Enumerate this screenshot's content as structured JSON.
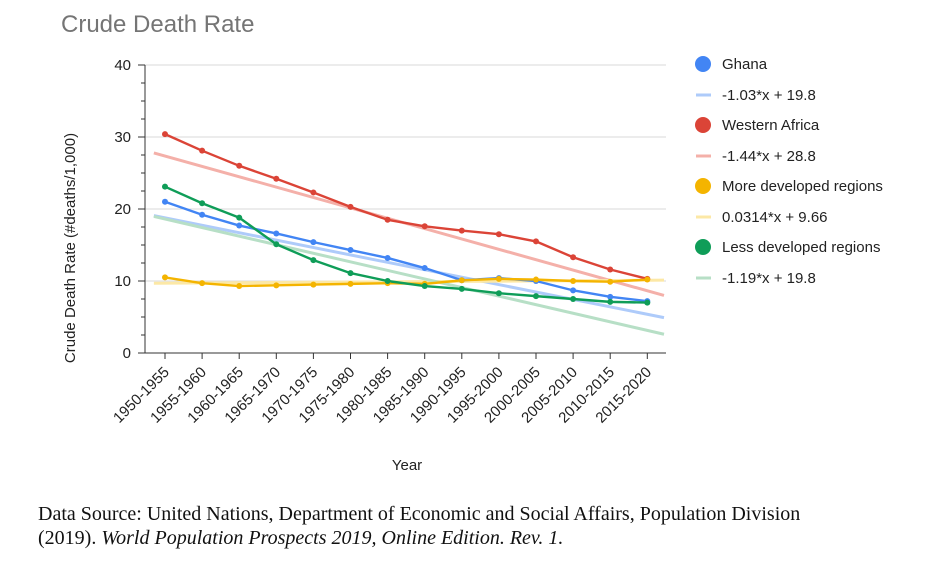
{
  "chart_data": {
    "type": "line",
    "title": "Crude Death Rate",
    "xlabel": "Year",
    "ylabel": "Crude Death Rate (#deaths/1,000)",
    "ylim": [
      0,
      40
    ],
    "yticks": [
      "0",
      "10",
      "20",
      "30",
      "40"
    ],
    "grid": true,
    "legend_position": "right",
    "categories": [
      "1950-1955",
      "1955-1960",
      "1960-1965",
      "1965-1970",
      "1970-1975",
      "1975-1980",
      "1980-1985",
      "1985-1990",
      "1990-1995",
      "1995-2000",
      "2000-2005",
      "2005-2010",
      "2010-2015",
      "2015-2020"
    ],
    "series": [
      {
        "name": "Ghana",
        "color": "#4285f4",
        "values": [
          21.0,
          19.2,
          17.7,
          16.6,
          15.4,
          14.3,
          13.2,
          11.8,
          10.1,
          10.4,
          10.0,
          8.7,
          7.8,
          7.2
        ],
        "trend_label": "-1.03*x + 19.8",
        "trend": {
          "slope": -1.03,
          "intercept": 19.8
        },
        "trend_color": "#aecbfa"
      },
      {
        "name": "Western Africa",
        "color": "#db4437",
        "values": [
          30.4,
          28.1,
          26.0,
          24.2,
          22.3,
          20.3,
          18.5,
          17.6,
          17.0,
          16.5,
          15.5,
          13.3,
          11.6,
          10.3
        ],
        "trend_label": "-1.44*x + 28.8",
        "trend": {
          "slope": -1.44,
          "intercept": 28.8
        },
        "trend_color": "#f4b0a9"
      },
      {
        "name": "More developed regions",
        "color": "#f4b400",
        "values": [
          10.5,
          9.7,
          9.3,
          9.4,
          9.5,
          9.6,
          9.7,
          9.6,
          10.1,
          10.3,
          10.2,
          10.0,
          9.9,
          10.2
        ],
        "trend_label": "0.0314*x + 9.66",
        "trend": {
          "slope": 0.0314,
          "intercept": 9.66
        },
        "trend_color": "#fce8a6"
      },
      {
        "name": "Less developed regions",
        "color": "#0f9d58",
        "values": [
          23.1,
          20.8,
          18.8,
          15.1,
          12.9,
          11.1,
          10.0,
          9.3,
          8.9,
          8.3,
          7.9,
          7.5,
          7.1,
          7.0
        ],
        "trend_label": "-1.19*x + 19.8",
        "trend": {
          "slope": -1.19,
          "intercept": 19.8
        },
        "trend_color": "#b7dfc6"
      }
    ]
  },
  "source": {
    "text": "Data Source: United Nations, Department of Economic and Social Affairs, Population Division",
    "line2_plain": "(2019). ",
    "line2_italic": "World Population Prospects 2019, Online Edition. Rev. 1."
  }
}
